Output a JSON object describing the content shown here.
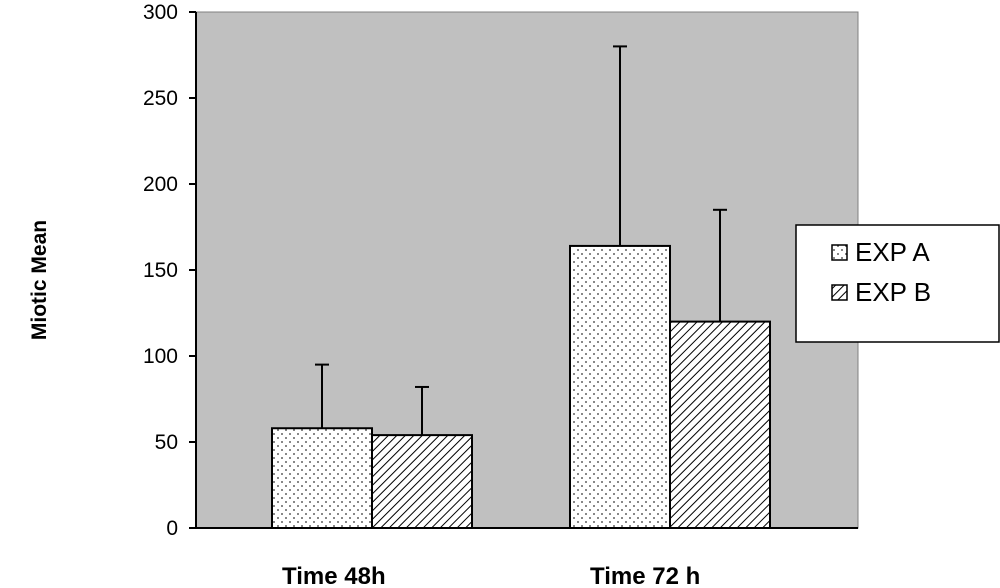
{
  "chart_data": {
    "type": "bar",
    "title": "",
    "xlabel": "",
    "ylabel": "Miotic Mean",
    "categories": [
      "Time 48h",
      "Time 72 h"
    ],
    "series": [
      {
        "name": "EXP A",
        "values": [
          58,
          164
        ],
        "error": [
          37,
          116
        ],
        "pattern": "dots"
      },
      {
        "name": "EXP B",
        "values": [
          54,
          120
        ],
        "error": [
          28,
          65
        ],
        "pattern": "hatch"
      }
    ],
    "ylim": [
      0,
      300
    ],
    "yticks": [
      0,
      50,
      100,
      150,
      200,
      250,
      300
    ],
    "grid": false,
    "legend_position": "right",
    "colors": {
      "plot_background": "#c0c0c0",
      "bar_fill": "#ffffff",
      "stroke": "#000000"
    }
  }
}
